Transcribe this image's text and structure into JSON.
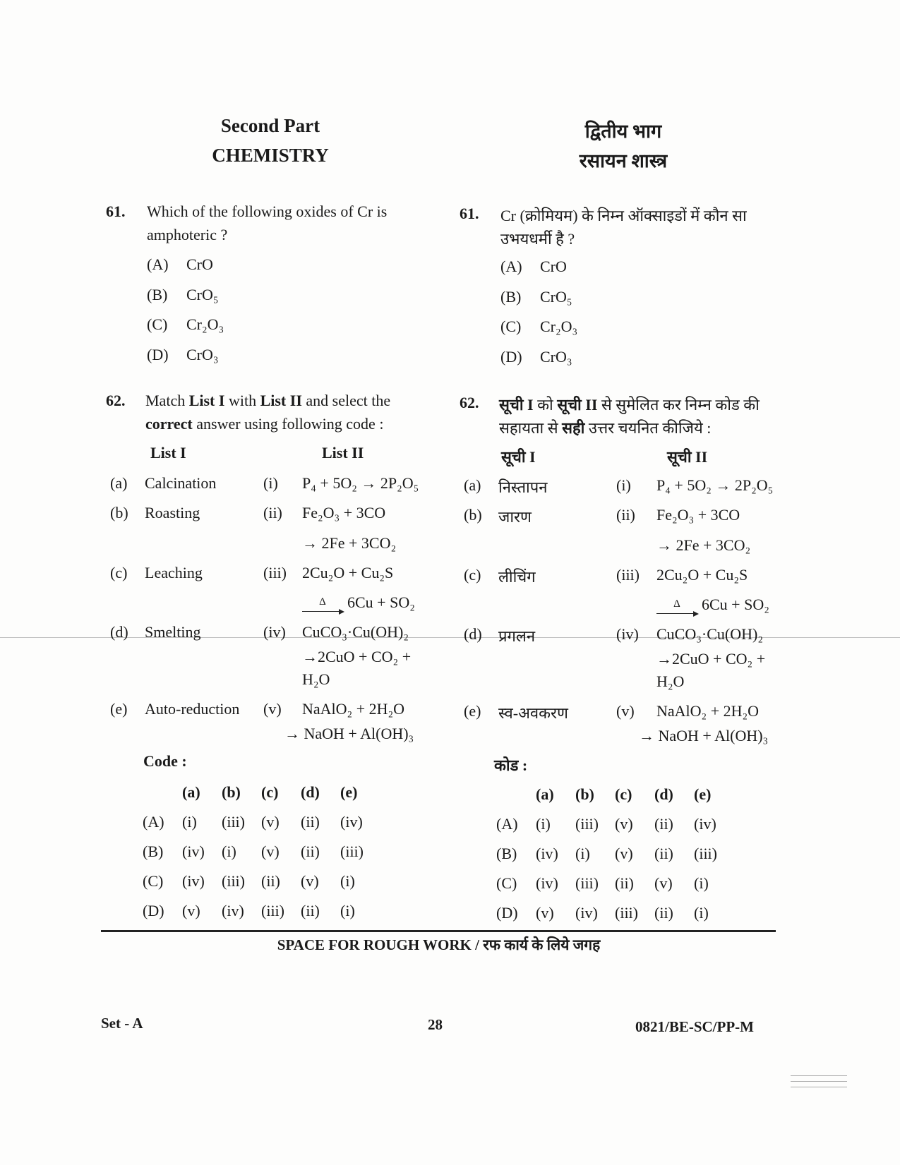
{
  "english": {
    "part": "Second Part",
    "subject": "CHEMISTRY",
    "q61": {
      "number": "61.",
      "lines": [
        "Which of the following oxides of Cr is",
        "amphoteric ?"
      ],
      "options": [
        {
          "label": "(A)",
          "value": "CrO"
        },
        {
          "label": "(B)",
          "value": "CrO₅"
        },
        {
          "label": "(C)",
          "value": "Cr₂O₃"
        },
        {
          "label": "(D)",
          "value": "CrO₃"
        }
      ]
    },
    "q62": {
      "number": "62.",
      "lines": [
        [
          {
            "t": "Match ",
            "b": false
          },
          {
            "t": "List I",
            "b": true
          },
          {
            "t": " with ",
            "b": false
          },
          {
            "t": "List II",
            "b": true
          },
          {
            "t": " and select the",
            "b": false
          }
        ],
        [
          {
            "t": "correct",
            "b": true
          },
          {
            "t": " answer using following code :",
            "b": false
          }
        ]
      ],
      "list1_header": "List I",
      "list2_header": "List II",
      "items": [
        "Calcination",
        "Roasting",
        "Leaching",
        "Smelting",
        "Auto-reduction"
      ],
      "code_label": "Code :"
    }
  },
  "hindi": {
    "part": "द्वितीय भाग",
    "subject": "रसायन शास्त्र",
    "q61": {
      "number": "61.",
      "lines": [
        "Cr (क्रोमियम) के निम्न ऑक्साइडों में कौन सा",
        "उभयधर्मी है ?"
      ],
      "options": [
        {
          "label": "(A)",
          "value": "CrO"
        },
        {
          "label": "(B)",
          "value": "CrO₅"
        },
        {
          "label": "(C)",
          "value": "Cr₂O₃"
        },
        {
          "label": "(D)",
          "value": "CrO₃"
        }
      ]
    },
    "q62": {
      "number": "62.",
      "lines": [
        [
          {
            "t": "सूची I",
            "b": true
          },
          {
            "t": " को ",
            "b": false
          },
          {
            "t": "सूची II",
            "b": true
          },
          {
            "t": " से सुमेलित कर निम्न कोड की",
            "b": false
          }
        ],
        [
          {
            "t": "सहायता से ",
            "b": false
          },
          {
            "t": "सही",
            "b": true
          },
          {
            "t": " उत्तर चयनित कीजिये :",
            "b": false
          }
        ]
      ],
      "list1_header": "सूची I",
      "list2_header": "सूची II",
      "items": [
        "निस्तापन",
        "जारण",
        "लीचिंग",
        "प्रगलन",
        "स्व-अवकरण"
      ],
      "code_label": "कोड :"
    }
  },
  "list_letters": [
    "(a)",
    "(b)",
    "(c)",
    "(d)",
    "(e)"
  ],
  "list_romans": [
    "(i)",
    "(ii)",
    "(iii)",
    "(iv)",
    "(v)"
  ],
  "list2_formulas": [
    [
      "P₄ + 5O₂ → 2P₂O₅"
    ],
    [
      "Fe₂O₃ + 3CO",
      "→ 2Fe + 3CO₂"
    ],
    [
      "2Cu₂O + Cu₂S",
      {
        "over": "Δ",
        "rest": "6Cu + SO₂"
      }
    ],
    [
      "CuCO₃·Cu(OH)₂",
      "→2CuO +  CO₂ +",
      "H₂O"
    ],
    [
      "NaAlO₂ + 2H₂O",
      "→ NaOH + Al(OH)₃"
    ]
  ],
  "codes": {
    "header": [
      "(a)",
      "(b)",
      "(c)",
      "(d)",
      "(e)"
    ],
    "rows": [
      {
        "label": "(A)",
        "values": [
          "(i)",
          "(iii)",
          "(v)",
          "(ii)",
          "(iv)"
        ]
      },
      {
        "label": "(B)",
        "values": [
          "(iv)",
          "(i)",
          "(v)",
          "(ii)",
          "(iii)"
        ]
      },
      {
        "label": "(C)",
        "values": [
          "(iv)",
          "(iii)",
          "(ii)",
          "(v)",
          "(i)"
        ]
      },
      {
        "label": "(D)",
        "values": [
          "(v)",
          "(iv)",
          "(iii)",
          "(ii)",
          "(i)"
        ]
      }
    ]
  },
  "footer": {
    "rough_work": "SPACE FOR ROUGH WORK / रफ कार्य के लिये जगह",
    "set": "Set - A",
    "page_number": "28",
    "paper_code": "0821/BE-SC/PP-M"
  }
}
